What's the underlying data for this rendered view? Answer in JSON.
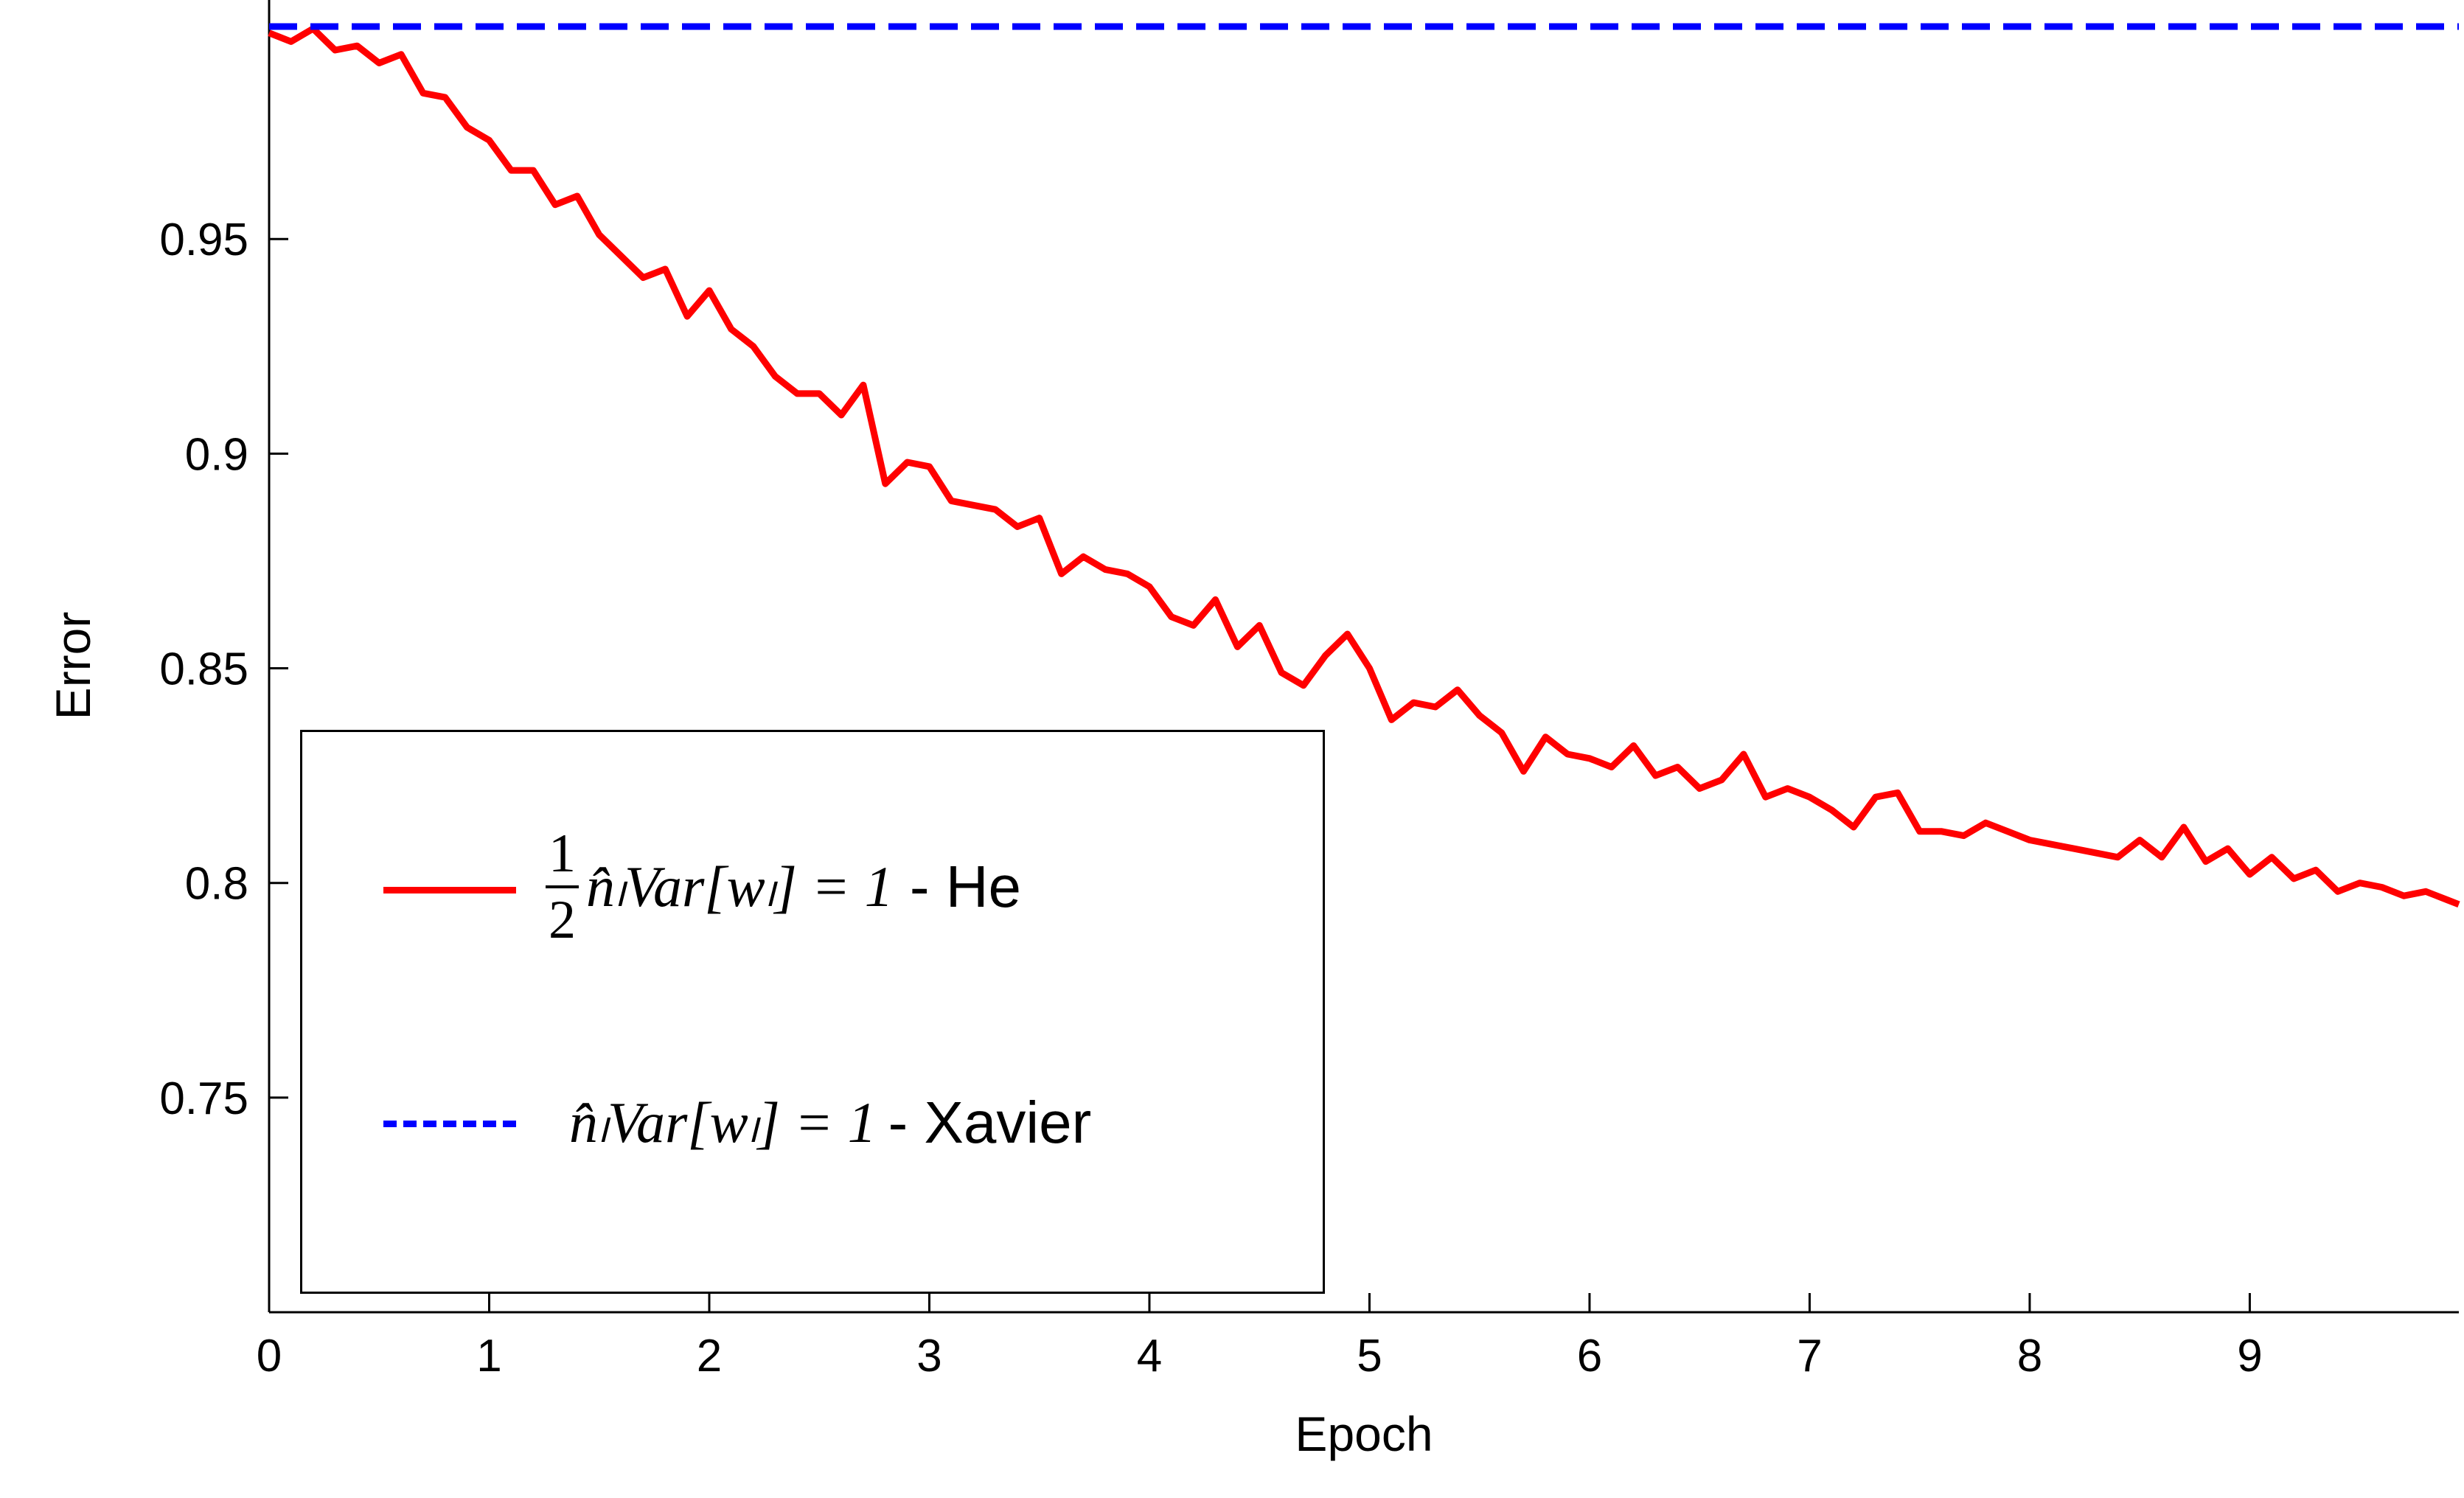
{
  "chart_data": {
    "type": "line",
    "xlabel": "Epoch",
    "ylabel": "Error",
    "xlim": [
      0,
      9.95
    ],
    "ylim": [
      0.7,
      0.9995
    ],
    "xticks": [
      "0",
      "1",
      "2",
      "3",
      "4",
      "5",
      "6",
      "7",
      "8",
      "9"
    ],
    "yticks": [
      "0.75",
      "0.8",
      "0.85",
      "0.9",
      "0.95"
    ],
    "ytick_values": [
      0.75,
      0.8,
      0.85,
      0.9,
      0.95
    ],
    "grid": false,
    "legend_position": "bottom-left",
    "series": [
      {
        "name": "½ n̂_l Var[w_l] = 1 - He",
        "color": "#ff0000",
        "style": "solid",
        "x": [
          0,
          0.1,
          0.2,
          0.3,
          0.4,
          0.5,
          0.6,
          0.7,
          0.8,
          0.9,
          1.0,
          1.1,
          1.2,
          1.3,
          1.4,
          1.5,
          1.6,
          1.7,
          1.8,
          1.9,
          2.0,
          2.1,
          2.2,
          2.3,
          2.4,
          2.5,
          2.6,
          2.7,
          2.8,
          2.9,
          3.0,
          3.1,
          3.2,
          3.3,
          3.4,
          3.5,
          3.6,
          3.7,
          3.8,
          3.9,
          4.0,
          4.1,
          4.2,
          4.3,
          4.4,
          4.5,
          4.6,
          4.7,
          4.8,
          4.9,
          5.0,
          5.1,
          5.2,
          5.3,
          5.4,
          5.5,
          5.6,
          5.7,
          5.8,
          5.9,
          6.0,
          6.1,
          6.2,
          6.3,
          6.4,
          6.5,
          6.6,
          6.7,
          6.8,
          6.9,
          7.0,
          7.1,
          7.2,
          7.3,
          7.4,
          7.5,
          7.6,
          7.7,
          7.8,
          7.9,
          8.0,
          8.1,
          8.2,
          8.3,
          8.4,
          8.5,
          8.6,
          8.7,
          8.8,
          8.9,
          9.0,
          9.1,
          9.2,
          9.3,
          9.4,
          9.5,
          9.6,
          9.7,
          9.8,
          9.9,
          9.95
        ],
        "y": [
          0.998,
          0.996,
          0.999,
          0.994,
          0.995,
          0.991,
          0.993,
          0.984,
          0.983,
          0.976,
          0.973,
          0.966,
          0.966,
          0.958,
          0.96,
          0.951,
          0.946,
          0.941,
          0.943,
          0.932,
          0.938,
          0.929,
          0.925,
          0.918,
          0.914,
          0.914,
          0.909,
          0.916,
          0.893,
          0.898,
          0.897,
          0.889,
          0.888,
          0.887,
          0.883,
          0.885,
          0.872,
          0.876,
          0.873,
          0.872,
          0.869,
          0.862,
          0.86,
          0.866,
          0.855,
          0.86,
          0.849,
          0.846,
          0.853,
          0.858,
          0.85,
          0.838,
          0.842,
          0.841,
          0.845,
          0.839,
          0.835,
          0.826,
          0.834,
          0.83,
          0.829,
          0.827,
          0.832,
          0.825,
          0.827,
          0.822,
          0.824,
          0.83,
          0.82,
          0.822,
          0.82,
          0.817,
          0.813,
          0.82,
          0.821,
          0.812,
          0.812,
          0.811,
          0.814,
          0.812,
          0.81,
          0.809,
          0.808,
          0.807,
          0.806,
          0.81,
          0.806,
          0.813,
          0.805,
          0.808,
          0.802,
          0.806,
          0.801,
          0.803,
          0.798,
          0.8,
          0.799,
          0.797,
          0.798,
          0.796,
          0.795
        ]
      },
      {
        "name": "n̂_l Var[w_l] = 1 - Xavier",
        "color": "#0000ff",
        "style": "dashed",
        "x": [
          0,
          9.95
        ],
        "y": [
          0.9995,
          0.9995
        ]
      }
    ]
  },
  "legend": {
    "he": {
      "frac_num": "1",
      "frac_den": "2",
      "formula": "n̂ₗVar[wₗ] = 1",
      "suffix": " - He"
    },
    "xavier": {
      "formula": "n̂ₗVar[wₗ] = 1",
      "suffix": "- Xavier"
    }
  }
}
